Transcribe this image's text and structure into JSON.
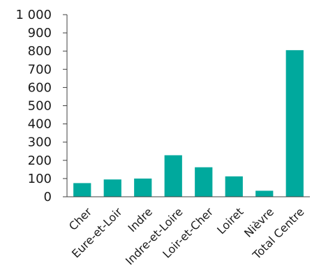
{
  "chart_data": {
    "type": "bar",
    "title": "",
    "xlabel": "",
    "ylabel": "",
    "categories": [
      "Cher",
      "Eure-et-Loir",
      "Indre",
      "Indre-et-Loire",
      "Loir-et-Cher",
      "Loiret",
      "Nièvre",
      "Total Centre"
    ],
    "values": [
      75,
      95,
      100,
      228,
      162,
      112,
      33,
      805
    ],
    "ylim": [
      0,
      1000
    ],
    "y_ticks": [
      0,
      100,
      200,
      300,
      400,
      500,
      600,
      700,
      800,
      900,
      1000
    ],
    "y_tick_labels": [
      "0",
      "100",
      "200",
      "300",
      "400",
      "500",
      "600",
      "700",
      "800",
      "900",
      "1 000"
    ],
    "bar_color": "#00A99D",
    "axis_color": "#404040",
    "grid": false,
    "legend": "none"
  }
}
